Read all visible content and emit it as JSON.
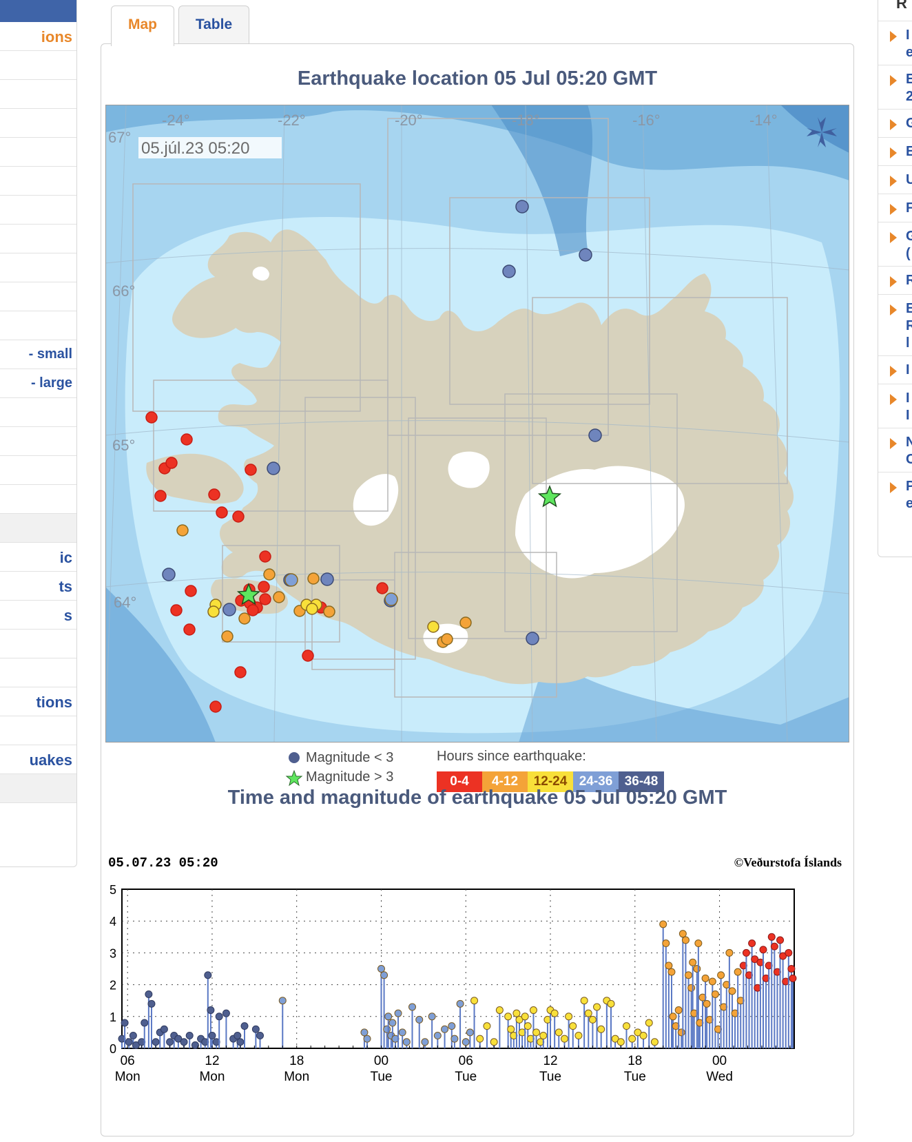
{
  "left_sidebar": {
    "items": [
      {
        "label": "ions",
        "style": "orange"
      },
      {
        "label": ""
      },
      {
        "label": ""
      },
      {
        "label": ""
      },
      {
        "label": ""
      },
      {
        "label": ""
      },
      {
        "label": ""
      },
      {
        "label": ""
      },
      {
        "label": ""
      },
      {
        "label": ""
      },
      {
        "label": ""
      },
      {
        "label": "- small",
        "style": "small"
      },
      {
        "label": "- large",
        "style": "small"
      },
      {
        "label": ""
      },
      {
        "label": ""
      },
      {
        "label": ""
      },
      {
        "label": ""
      },
      {
        "label": "",
        "style": "grey"
      },
      {
        "label": "ic"
      },
      {
        "label": "ts"
      },
      {
        "label": "s"
      },
      {
        "label": ""
      },
      {
        "label": ""
      },
      {
        "label": "tions"
      },
      {
        "label": ""
      },
      {
        "label": "uakes"
      },
      {
        "label": "",
        "style": "grey"
      }
    ]
  },
  "right_sidebar": {
    "heading": "R",
    "items": [
      {
        "lines": [
          "I",
          "e"
        ]
      },
      {
        "lines": [
          "E",
          "2"
        ]
      },
      {
        "lines": [
          "G"
        ]
      },
      {
        "lines": [
          "E"
        ]
      },
      {
        "lines": [
          "U"
        ]
      },
      {
        "lines": [
          "F"
        ]
      },
      {
        "lines": [
          "G",
          "("
        ]
      },
      {
        "lines": [
          "R"
        ]
      },
      {
        "lines": [
          "E",
          "R",
          "l"
        ]
      },
      {
        "lines": [
          "I"
        ]
      },
      {
        "lines": [
          "I",
          "I"
        ]
      },
      {
        "lines": [
          "N",
          "C"
        ]
      },
      {
        "lines": [
          "P",
          "e"
        ]
      }
    ]
  },
  "tabs": [
    {
      "label": "Map",
      "active": true
    },
    {
      "label": "Table",
      "active": false
    }
  ],
  "map": {
    "title": "Earthquake location   05 Jul 05:20 GMT",
    "timestamp": "05.júl.23  05:20",
    "lon_labels": [
      "-24°",
      "-22°",
      "-20°",
      "-18°",
      "-16°",
      "-14°"
    ],
    "lat_labels": [
      "67°",
      "66°",
      "65°",
      "64°"
    ],
    "expand_icon": "fullscreen-arrows-icon"
  },
  "legend": {
    "small_label": "Magnitude < 3",
    "large_label": "Magnitude > 3",
    "hours_title": "Hours since earthquake:",
    "hours": [
      {
        "label": "0-4",
        "color": "#ec3223"
      },
      {
        "label": "4-12",
        "color": "#f4a338"
      },
      {
        "label": "12-24",
        "color": "#f8e03a"
      },
      {
        "label": "24-36",
        "color": "#7f9fd6"
      },
      {
        "label": "36-48",
        "color": "#4f5f8f"
      }
    ]
  },
  "timeplot": {
    "title": "Time and magnitude of earthquake   05 Jul 05:20 GMT",
    "timestamp": "05.07.23 05:20",
    "copyright": "©Veðurstofa Íslands"
  },
  "chart_data": {
    "type": "scatter",
    "title": "Time and magnitude of earthquake   05 Jul 05:20 GMT",
    "xlabel": "",
    "ylabel": "",
    "ylim": [
      0,
      5
    ],
    "y_ticks": [
      "0",
      "1",
      "2",
      "3",
      "4",
      "5"
    ],
    "x_ticks": [
      {
        "hour": 6,
        "label": "06",
        "day": "Mon"
      },
      {
        "hour": 12,
        "label": "12",
        "day": "Mon"
      },
      {
        "hour": 18,
        "label": "18",
        "day": "Mon"
      },
      {
        "hour": 24,
        "label": "00",
        "day": "Tue"
      },
      {
        "hour": 30,
        "label": "06",
        "day": "Tue"
      },
      {
        "hour": 36,
        "label": "12",
        "day": "Tue"
      },
      {
        "hour": 42,
        "label": "18",
        "day": "Tue"
      },
      {
        "hour": 48,
        "label": "00",
        "day": "Wed"
      }
    ],
    "xlim_hours": [
      5.6,
      53.3
    ],
    "x_units": "hours since 00:00 Mon",
    "grid": true,
    "series": [
      {
        "name": "36-48",
        "color": "#4f5f8f",
        "x": [
          5.6,
          5.8,
          6.1,
          6.4,
          6.6,
          7.0,
          7.2,
          7.5,
          7.7,
          8.0,
          8.3,
          8.6,
          9.0,
          9.3,
          9.6,
          10.0,
          10.4,
          10.8,
          11.2,
          11.5,
          11.7,
          11.9,
          12.0,
          12.3,
          12.5,
          13.0,
          13.5,
          13.8,
          14.0,
          14.3,
          15.1,
          15.4
        ],
        "y": [
          0.3,
          0.8,
          0.2,
          0.4,
          0.1,
          0.2,
          0.8,
          1.7,
          1.4,
          0.2,
          0.5,
          0.6,
          0.2,
          0.4,
          0.3,
          0.2,
          0.4,
          0.1,
          0.3,
          0.2,
          2.3,
          1.2,
          0.4,
          0.2,
          1.0,
          1.1,
          0.3,
          0.4,
          0.2,
          0.7,
          0.6,
          0.4
        ]
      },
      {
        "name": "24-36",
        "color": "#7f9fd6",
        "x": [
          17.0,
          22.8,
          23.0,
          24.0,
          24.2,
          24.4,
          24.5,
          24.7,
          24.8,
          25.0,
          25.2,
          25.5,
          25.8,
          26.2,
          26.7,
          27.1,
          27.6,
          28.0,
          28.5,
          29.0,
          29.2,
          29.6,
          30.0,
          30.3
        ],
        "y": [
          1.5,
          0.5,
          0.3,
          2.5,
          2.3,
          0.6,
          1.0,
          0.4,
          0.8,
          0.3,
          1.1,
          0.5,
          0.2,
          1.3,
          0.9,
          0.2,
          1.0,
          0.4,
          0.6,
          0.7,
          0.3,
          1.4,
          0.2,
          0.5
        ]
      },
      {
        "name": "12-24",
        "color": "#f8e03a",
        "x": [
          30.6,
          31.0,
          31.5,
          32.0,
          32.4,
          33.0,
          33.2,
          33.4,
          33.6,
          33.8,
          34.0,
          34.2,
          34.4,
          34.6,
          34.8,
          35.0,
          35.3,
          35.5,
          35.8,
          36.0,
          36.3,
          36.6,
          37.0,
          37.3,
          37.6,
          38.0,
          38.4,
          38.7,
          39.0,
          39.3,
          39.6,
          40.0,
          40.3,
          40.6,
          41.0,
          41.4,
          41.8,
          42.2,
          42.6,
          43.0,
          43.4
        ],
        "y": [
          1.5,
          0.3,
          0.7,
          0.2,
          1.2,
          1.0,
          0.6,
          0.4,
          1.1,
          0.9,
          0.5,
          1.0,
          0.7,
          0.3,
          1.2,
          0.5,
          0.2,
          0.4,
          0.9,
          1.2,
          1.1,
          0.5,
          0.3,
          1.0,
          0.7,
          0.4,
          1.5,
          1.1,
          0.9,
          1.3,
          0.6,
          1.5,
          1.4,
          0.3,
          0.2,
          0.7,
          0.3,
          0.5,
          0.4,
          0.8,
          0.2
        ]
      },
      {
        "name": "4-12",
        "color": "#f4a338",
        "x": [
          44.0,
          44.2,
          44.4,
          44.6,
          44.7,
          44.9,
          45.1,
          45.3,
          45.4,
          45.6,
          45.8,
          46.0,
          46.1,
          46.2,
          46.4,
          46.5,
          46.6,
          46.8,
          47.0,
          47.1,
          47.3,
          47.5,
          47.7,
          47.9,
          48.1,
          48.3,
          48.5,
          48.7,
          48.9,
          49.1,
          49.3,
          49.5
        ],
        "y": [
          3.9,
          3.3,
          2.6,
          2.4,
          1.0,
          0.7,
          1.2,
          0.5,
          3.6,
          3.4,
          2.3,
          1.9,
          2.7,
          1.1,
          2.5,
          3.3,
          0.8,
          1.6,
          2.2,
          1.4,
          0.9,
          2.1,
          1.7,
          0.6,
          2.3,
          1.3,
          2.0,
          3.0,
          1.8,
          1.1,
          2.4,
          1.5
        ]
      },
      {
        "name": "0-4",
        "color": "#ec3223",
        "x": [
          49.7,
          49.9,
          50.1,
          50.3,
          50.5,
          50.7,
          50.9,
          51.1,
          51.3,
          51.5,
          51.7,
          51.9,
          52.1,
          52.3,
          52.5,
          52.7,
          52.9,
          53.1,
          53.2
        ],
        "y": [
          2.6,
          3.0,
          2.3,
          3.3,
          2.8,
          1.9,
          2.7,
          3.1,
          2.2,
          2.6,
          3.5,
          3.2,
          2.4,
          3.4,
          2.9,
          2.1,
          3.0,
          2.5,
          2.2
        ]
      }
    ]
  }
}
